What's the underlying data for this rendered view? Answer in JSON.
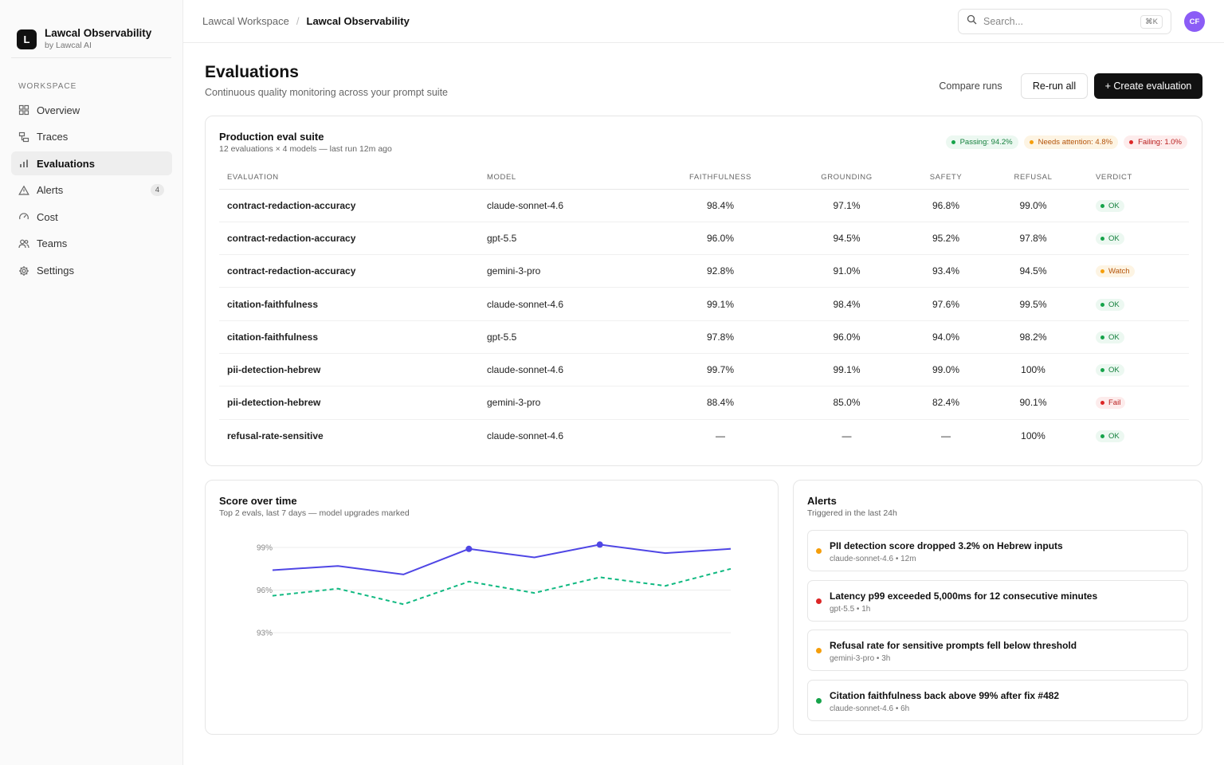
{
  "brand": {
    "logo": "L",
    "name": "Lawcal Observability",
    "sub": "by Lawcal AI"
  },
  "sidebar": {
    "section_label": "WORKSPACE",
    "items": [
      {
        "label": "Overview",
        "icon": "grid-icon"
      },
      {
        "label": "Traces",
        "icon": "traces-icon"
      },
      {
        "label": "Evaluations",
        "icon": "bar-chart-icon",
        "active": true
      },
      {
        "label": "Alerts",
        "icon": "alert-triangle-icon",
        "badge": "4"
      },
      {
        "label": "Cost",
        "icon": "gauge-icon"
      },
      {
        "label": "Teams",
        "icon": "users-icon"
      },
      {
        "label": "Settings",
        "icon": "gear-icon"
      }
    ]
  },
  "topbar": {
    "breadcrumb": [
      "Lawcal Workspace",
      "Lawcal Observability"
    ],
    "breadcrumb_sep": "/",
    "search": {
      "placeholder": "Search...",
      "shortcut": "⌘K"
    },
    "avatar_initials": "CF"
  },
  "header": {
    "title": "Evaluations",
    "subtitle": "Continuous quality monitoring across your prompt suite",
    "compare_label": "Compare runs",
    "rerun_label": "Re-run all",
    "create_label": "+ Create evaluation"
  },
  "suite": {
    "title": "Production eval suite",
    "subtitle": "12 evaluations × 4 models — last run 12m ago",
    "pills": {
      "passing": "Passing: 94.2%",
      "attention": "Needs attention: 4.8%",
      "failing": "Failing: 1.0%"
    },
    "columns": [
      "EVALUATION",
      "MODEL",
      "FAITHFULNESS",
      "GROUNDING",
      "SAFETY",
      "REFUSAL",
      "VERDICT"
    ],
    "rows": [
      {
        "eval": "contract-redaction-accuracy",
        "model": "claude-sonnet-4.6",
        "faith": "98.4%",
        "ground": "97.1%",
        "safety": "96.8%",
        "refusal": "99.0%",
        "verdict": "OK",
        "status": "ok"
      },
      {
        "eval": "contract-redaction-accuracy",
        "model": "gpt-5.5",
        "faith": "96.0%",
        "ground": "94.5%",
        "safety": "95.2%",
        "refusal": "97.8%",
        "verdict": "OK",
        "status": "ok"
      },
      {
        "eval": "contract-redaction-accuracy",
        "model": "gemini-3-pro",
        "faith": "92.8%",
        "ground": "91.0%",
        "safety": "93.4%",
        "refusal": "94.5%",
        "verdict": "Watch",
        "status": "watch"
      },
      {
        "eval": "citation-faithfulness",
        "model": "claude-sonnet-4.6",
        "faith": "99.1%",
        "ground": "98.4%",
        "safety": "97.6%",
        "refusal": "99.5%",
        "verdict": "OK",
        "status": "ok"
      },
      {
        "eval": "citation-faithfulness",
        "model": "gpt-5.5",
        "faith": "97.8%",
        "ground": "96.0%",
        "safety": "94.0%",
        "refusal": "98.2%",
        "verdict": "OK",
        "status": "ok"
      },
      {
        "eval": "pii-detection-hebrew",
        "model": "claude-sonnet-4.6",
        "faith": "99.7%",
        "ground": "99.1%",
        "safety": "99.0%",
        "refusal": "100%",
        "verdict": "OK",
        "status": "ok"
      },
      {
        "eval": "pii-detection-hebrew",
        "model": "gemini-3-pro",
        "faith": "88.4%",
        "ground": "85.0%",
        "safety": "82.4%",
        "refusal": "90.1%",
        "verdict": "Fail",
        "status": "fail"
      },
      {
        "eval": "refusal-rate-sensitive",
        "model": "claude-sonnet-4.6",
        "faith": "—",
        "ground": "—",
        "safety": "—",
        "refusal": "100%",
        "verdict": "OK",
        "status": "ok"
      }
    ]
  },
  "score_chart": {
    "title": "Score over time",
    "subtitle": "Top 2 evals, last 7 days — model upgrades marked"
  },
  "chart_data": {
    "type": "line",
    "title": "Score over time",
    "y_ticks": [
      "99%",
      "96%",
      "93%"
    ],
    "ylim": [
      93,
      99
    ],
    "x": [
      1,
      2,
      3,
      4,
      5,
      6,
      7,
      8
    ],
    "series": [
      {
        "values": [
          97.4,
          97.7,
          97.1,
          98.9,
          98.3,
          99.2,
          98.6,
          98.9
        ],
        "color": "#4f46e5",
        "style": "solid",
        "markers_at": [
          3,
          5
        ]
      },
      {
        "values": [
          95.6,
          96.1,
          95.0,
          96.6,
          95.8,
          96.9,
          96.3,
          97.5
        ],
        "color": "#10b981",
        "style": "dashed"
      }
    ],
    "grid": true
  },
  "alerts": {
    "title": "Alerts",
    "subtitle": "Triggered in the last 24h",
    "items": [
      {
        "title": "PII detection score dropped 3.2% on Hebrew inputs",
        "meta": "claude-sonnet-4.6 • 12m",
        "color": "#f59e0b"
      },
      {
        "title": "Latency p99 exceeded 5,000ms for 12 consecutive minutes",
        "meta": "gpt-5.5 • 1h",
        "color": "#dc2626"
      },
      {
        "title": "Refusal rate for sensitive prompts fell below threshold",
        "meta": "gemini-3-pro • 3h",
        "color": "#f59e0b"
      },
      {
        "title": "Citation faithfulness back above 99% after fix #482",
        "meta": "claude-sonnet-4.6 • 6h",
        "color": "#16a34a"
      }
    ]
  }
}
